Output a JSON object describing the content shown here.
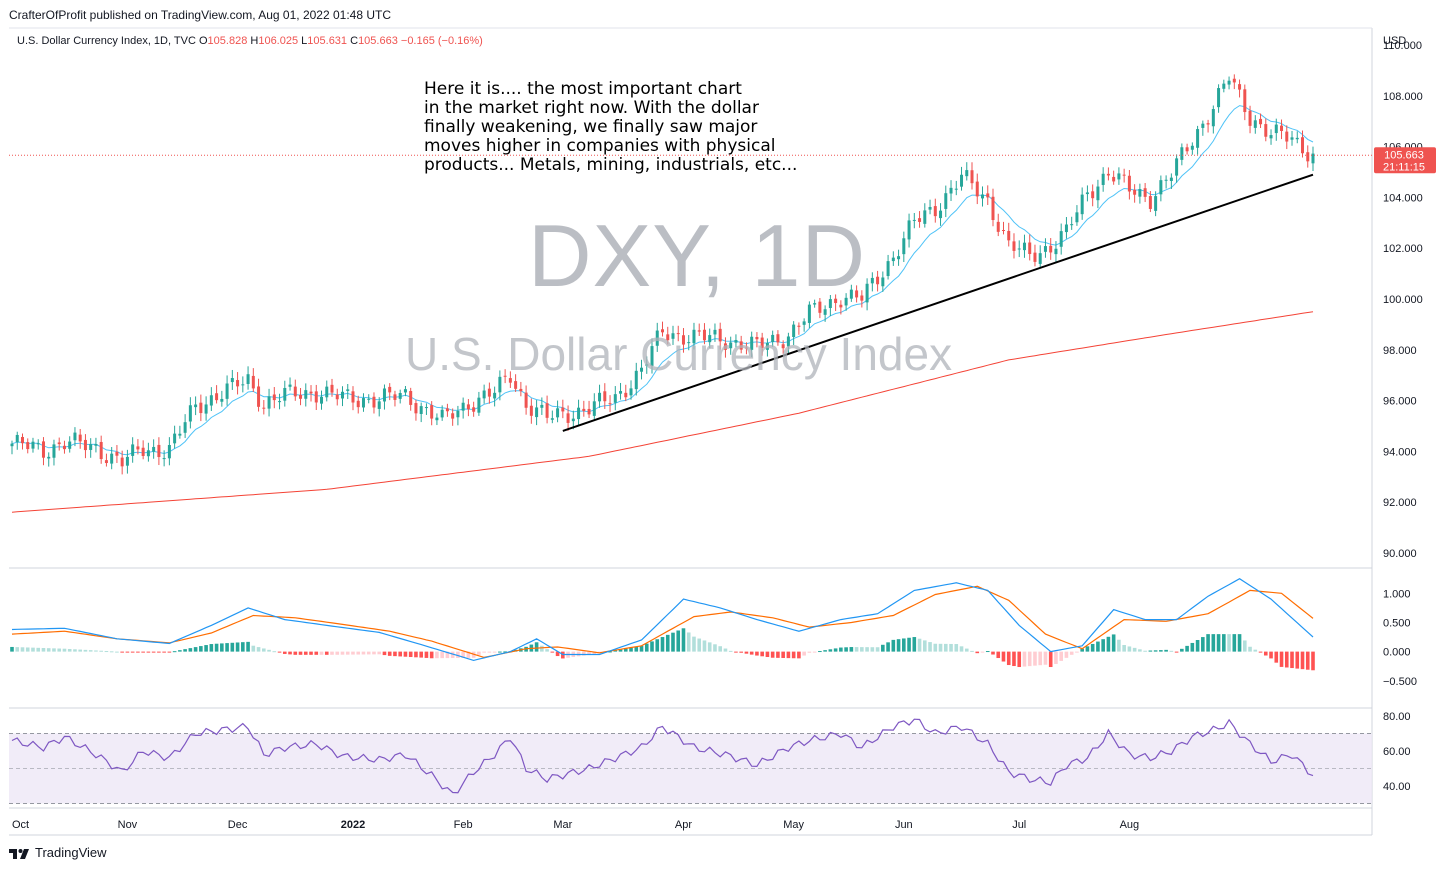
{
  "header": {
    "published_line": "CrafterOfProfit published on TradingView.com, Aug 01, 2022 01:48 UTC"
  },
  "legend": {
    "symbol": "U.S. Dollar Currency Index, 1D, TVC",
    "o_label": "O",
    "o_value": "105.828",
    "h_label": "H",
    "h_value": "106.025",
    "l_label": "L",
    "l_value": "105.631",
    "c_label": "C",
    "c_value": "105.663",
    "change": "−0.165 (−0.16%)"
  },
  "annotation": "Here it is.... the most important chart\nin the market right now. With the dollar\nfinally weakening, we finally saw major\nmoves higher in companies with physical\nproducts... Metals, mining, industrials, etc...",
  "watermark": {
    "symbol": "DXY, 1D",
    "name": "U.S. Dollar Currency Index"
  },
  "footer": {
    "brand": "TradingView"
  },
  "colors": {
    "up": "#26a69a",
    "down": "#ef5350",
    "ema_fast": "#4fc3f7",
    "ma_slow": "#f44336",
    "macd": "#2196f3",
    "signal": "#ff6d00",
    "rsi": "#7e57c2",
    "rsi_band": "#ede7f6"
  },
  "chart_data": [
    {
      "type": "candlestick",
      "panel": "price",
      "currency_label": "USD",
      "y_ticks": [
        "110.000",
        "108.000",
        "106.000",
        "104.000",
        "102.000",
        "100.000",
        "98.000",
        "96.000",
        "94.000",
        "92.000",
        "90.000"
      ],
      "ylim": [
        89.4,
        110.6
      ],
      "x_labels": [
        "Oct",
        "Nov",
        "Dec",
        "2022",
        "Feb",
        "Mar",
        "Apr",
        "May",
        "Jun",
        "Jul",
        "Aug"
      ],
      "last_price": "105.663",
      "countdown": "21:11:15",
      "price_path": [
        {
          "x": 0,
          "y": 94.3
        },
        {
          "x": 6,
          "y": 94.05
        },
        {
          "x": 10,
          "y": 94.35
        },
        {
          "x": 16,
          "y": 94.15
        },
        {
          "x": 21,
          "y": 93.55
        },
        {
          "x": 25,
          "y": 94.1
        },
        {
          "x": 30,
          "y": 94.05
        },
        {
          "x": 35,
          "y": 95.8
        },
        {
          "x": 40,
          "y": 96.3
        },
        {
          "x": 45,
          "y": 96.8
        },
        {
          "x": 48,
          "y": 95.9
        },
        {
          "x": 52,
          "y": 96.2
        },
        {
          "x": 58,
          "y": 96.35
        },
        {
          "x": 63,
          "y": 96.1
        },
        {
          "x": 70,
          "y": 96.05
        },
        {
          "x": 75,
          "y": 96.2
        },
        {
          "x": 82,
          "y": 95.2
        },
        {
          "x": 87,
          "y": 95.9
        },
        {
          "x": 92,
          "y": 96.3
        },
        {
          "x": 95,
          "y": 97.0
        },
        {
          "x": 98,
          "y": 95.9
        },
        {
          "x": 102,
          "y": 95.3
        },
        {
          "x": 110,
          "y": 95.7
        },
        {
          "x": 115,
          "y": 96.1
        },
        {
          "x": 120,
          "y": 97.2
        },
        {
          "x": 124,
          "y": 98.7
        },
        {
          "x": 130,
          "y": 98.5
        },
        {
          "x": 136,
          "y": 98.4
        },
        {
          "x": 142,
          "y": 98.1
        },
        {
          "x": 148,
          "y": 98.6
        },
        {
          "x": 152,
          "y": 99.4
        },
        {
          "x": 158,
          "y": 100.1
        },
        {
          "x": 162,
          "y": 100.0
        },
        {
          "x": 168,
          "y": 101.7
        },
        {
          "x": 172,
          "y": 103.0
        },
        {
          "x": 176,
          "y": 103.6
        },
        {
          "x": 181,
          "y": 104.8
        },
        {
          "x": 186,
          "y": 103.9
        },
        {
          "x": 190,
          "y": 102.1
        },
        {
          "x": 194,
          "y": 101.7
        },
        {
          "x": 198,
          "y": 102.1
        },
        {
          "x": 201,
          "y": 102.6
        },
        {
          "x": 205,
          "y": 104.2
        },
        {
          "x": 209,
          "y": 105.0
        },
        {
          "x": 213,
          "y": 104.3
        },
        {
          "x": 217,
          "y": 104.0
        },
        {
          "x": 221,
          "y": 104.9
        },
        {
          "x": 225,
          "y": 106.3
        },
        {
          "x": 229,
          "y": 107.6
        },
        {
          "x": 232,
          "y": 108.7
        },
        {
          "x": 236,
          "y": 107.2
        },
        {
          "x": 240,
          "y": 106.5
        },
        {
          "x": 244,
          "y": 106.3
        },
        {
          "x": 248,
          "y": 105.7
        }
      ],
      "overlays": [
        {
          "name": "fast_ema",
          "kind": "ema"
        },
        {
          "name": "ma_200",
          "kind": "sma",
          "points": [
            {
              "x": 0,
              "y": 91.6
            },
            {
              "x": 60,
              "y": 92.5
            },
            {
              "x": 110,
              "y": 93.8
            },
            {
              "x": 150,
              "y": 95.5
            },
            {
              "x": 190,
              "y": 97.6
            },
            {
              "x": 220,
              "y": 98.6
            },
            {
              "x": 248,
              "y": 99.5
            }
          ]
        },
        {
          "name": "trendline",
          "kind": "line",
          "points": [
            {
              "x": 105,
              "y": 94.8
            },
            {
              "x": 248,
              "y": 104.9
            }
          ]
        }
      ]
    },
    {
      "type": "line",
      "panel": "macd",
      "y_ticks": [
        "1.000",
        "0.500",
        "0.000",
        "−0.500"
      ],
      "ylim": [
        -0.95,
        1.4
      ],
      "macd_path": [
        {
          "x": 0,
          "y": 0.38
        },
        {
          "x": 10,
          "y": 0.4
        },
        {
          "x": 20,
          "y": 0.22
        },
        {
          "x": 30,
          "y": 0.14
        },
        {
          "x": 38,
          "y": 0.45
        },
        {
          "x": 45,
          "y": 0.75
        },
        {
          "x": 52,
          "y": 0.55
        },
        {
          "x": 60,
          "y": 0.45
        },
        {
          "x": 70,
          "y": 0.33
        },
        {
          "x": 78,
          "y": 0.12
        },
        {
          "x": 88,
          "y": -0.15
        },
        {
          "x": 95,
          "y": 0.0
        },
        {
          "x": 100,
          "y": 0.22
        },
        {
          "x": 105,
          "y": -0.05
        },
        {
          "x": 112,
          "y": -0.05
        },
        {
          "x": 120,
          "y": 0.2
        },
        {
          "x": 128,
          "y": 0.9
        },
        {
          "x": 135,
          "y": 0.75
        },
        {
          "x": 142,
          "y": 0.55
        },
        {
          "x": 150,
          "y": 0.35
        },
        {
          "x": 158,
          "y": 0.55
        },
        {
          "x": 165,
          "y": 0.65
        },
        {
          "x": 172,
          "y": 1.05
        },
        {
          "x": 180,
          "y": 1.18
        },
        {
          "x": 186,
          "y": 1.05
        },
        {
          "x": 192,
          "y": 0.45
        },
        {
          "x": 198,
          "y": 0.0
        },
        {
          "x": 204,
          "y": 0.1
        },
        {
          "x": 210,
          "y": 0.72
        },
        {
          "x": 216,
          "y": 0.55
        },
        {
          "x": 222,
          "y": 0.55
        },
        {
          "x": 228,
          "y": 0.95
        },
        {
          "x": 234,
          "y": 1.25
        },
        {
          "x": 240,
          "y": 0.9
        },
        {
          "x": 248,
          "y": 0.25
        }
      ],
      "signal_path": [
        {
          "x": 0,
          "y": 0.3
        },
        {
          "x": 10,
          "y": 0.35
        },
        {
          "x": 20,
          "y": 0.22
        },
        {
          "x": 30,
          "y": 0.15
        },
        {
          "x": 38,
          "y": 0.32
        },
        {
          "x": 46,
          "y": 0.62
        },
        {
          "x": 54,
          "y": 0.58
        },
        {
          "x": 62,
          "y": 0.48
        },
        {
          "x": 72,
          "y": 0.35
        },
        {
          "x": 80,
          "y": 0.18
        },
        {
          "x": 90,
          "y": -0.1
        },
        {
          "x": 98,
          "y": 0.05
        },
        {
          "x": 104,
          "y": 0.08
        },
        {
          "x": 112,
          "y": -0.02
        },
        {
          "x": 120,
          "y": 0.1
        },
        {
          "x": 130,
          "y": 0.6
        },
        {
          "x": 137,
          "y": 0.68
        },
        {
          "x": 145,
          "y": 0.58
        },
        {
          "x": 152,
          "y": 0.42
        },
        {
          "x": 160,
          "y": 0.5
        },
        {
          "x": 168,
          "y": 0.62
        },
        {
          "x": 176,
          "y": 0.98
        },
        {
          "x": 184,
          "y": 1.12
        },
        {
          "x": 190,
          "y": 0.88
        },
        {
          "x": 197,
          "y": 0.3
        },
        {
          "x": 204,
          "y": 0.05
        },
        {
          "x": 212,
          "y": 0.55
        },
        {
          "x": 220,
          "y": 0.52
        },
        {
          "x": 228,
          "y": 0.65
        },
        {
          "x": 236,
          "y": 1.05
        },
        {
          "x": 242,
          "y": 1.0
        },
        {
          "x": 248,
          "y": 0.57
        }
      ]
    },
    {
      "type": "line",
      "panel": "rsi",
      "y_ticks": [
        "80.00",
        "60.00",
        "40.00"
      ],
      "ylim": [
        28,
        84
      ],
      "band": [
        30,
        70
      ],
      "midline": 50,
      "rsi_path": [
        {
          "x": 0,
          "y": 66
        },
        {
          "x": 6,
          "y": 62
        },
        {
          "x": 10,
          "y": 68
        },
        {
          "x": 16,
          "y": 58
        },
        {
          "x": 21,
          "y": 48
        },
        {
          "x": 25,
          "y": 60
        },
        {
          "x": 30,
          "y": 56
        },
        {
          "x": 35,
          "y": 70
        },
        {
          "x": 40,
          "y": 72
        },
        {
          "x": 45,
          "y": 74
        },
        {
          "x": 48,
          "y": 58
        },
        {
          "x": 52,
          "y": 62
        },
        {
          "x": 58,
          "y": 64
        },
        {
          "x": 63,
          "y": 57
        },
        {
          "x": 70,
          "y": 55
        },
        {
          "x": 75,
          "y": 58
        },
        {
          "x": 80,
          "y": 46
        },
        {
          "x": 84,
          "y": 35
        },
        {
          "x": 88,
          "y": 48
        },
        {
          "x": 92,
          "y": 58
        },
        {
          "x": 95,
          "y": 68
        },
        {
          "x": 98,
          "y": 50
        },
        {
          "x": 102,
          "y": 44
        },
        {
          "x": 110,
          "y": 50
        },
        {
          "x": 115,
          "y": 56
        },
        {
          "x": 120,
          "y": 62
        },
        {
          "x": 124,
          "y": 74
        },
        {
          "x": 130,
          "y": 62
        },
        {
          "x": 136,
          "y": 58
        },
        {
          "x": 142,
          "y": 52
        },
        {
          "x": 148,
          "y": 62
        },
        {
          "x": 152,
          "y": 66
        },
        {
          "x": 158,
          "y": 70
        },
        {
          "x": 162,
          "y": 62
        },
        {
          "x": 168,
          "y": 74
        },
        {
          "x": 172,
          "y": 78
        },
        {
          "x": 176,
          "y": 70
        },
        {
          "x": 181,
          "y": 74
        },
        {
          "x": 186,
          "y": 64
        },
        {
          "x": 190,
          "y": 48
        },
        {
          "x": 194,
          "y": 44
        },
        {
          "x": 198,
          "y": 42
        },
        {
          "x": 201,
          "y": 52
        },
        {
          "x": 205,
          "y": 56
        },
        {
          "x": 209,
          "y": 70
        },
        {
          "x": 213,
          "y": 58
        },
        {
          "x": 217,
          "y": 56
        },
        {
          "x": 221,
          "y": 60
        },
        {
          "x": 225,
          "y": 68
        },
        {
          "x": 229,
          "y": 72
        },
        {
          "x": 232,
          "y": 76
        },
        {
          "x": 236,
          "y": 64
        },
        {
          "x": 240,
          "y": 54
        },
        {
          "x": 244,
          "y": 58
        },
        {
          "x": 248,
          "y": 46
        }
      ]
    }
  ]
}
